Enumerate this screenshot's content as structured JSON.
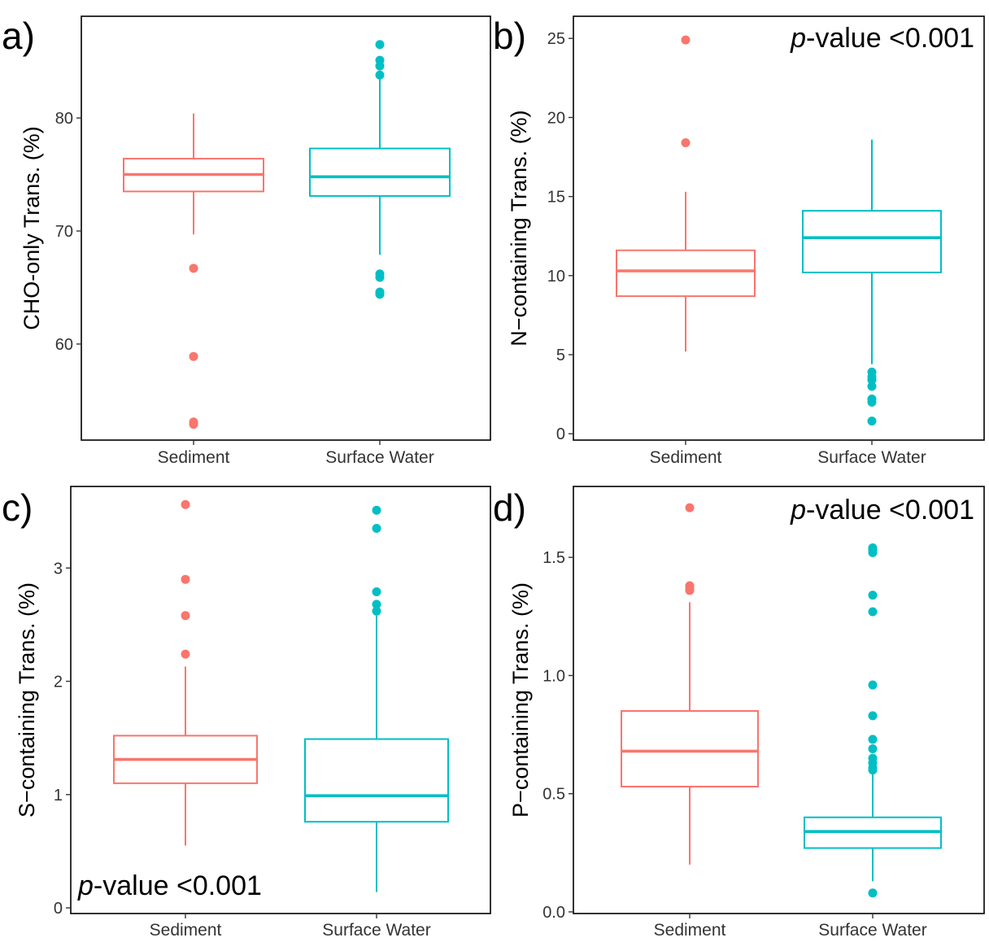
{
  "colors": {
    "sediment": "#F8766D",
    "surface_water": "#00BFC4",
    "axis": "#000000",
    "tick_text": "#333333"
  },
  "chart_data": [
    {
      "panel_label": "a)",
      "type": "box",
      "ylabel": "CHO-only Trans. (%)",
      "categories": [
        "Sediment",
        "Surface Water"
      ],
      "yticks": [
        60,
        70,
        80
      ],
      "ylim": [
        51.5,
        89.0
      ],
      "annotation": "",
      "annotation_position": "none",
      "boxes": [
        {
          "group": "Sediment",
          "whisker_low": 69.7,
          "q1": 73.5,
          "median": 75.0,
          "q3": 76.4,
          "whisker_high": 80.4,
          "outliers": [
            66.7,
            58.9,
            53.1,
            52.9
          ]
        },
        {
          "group": "Surface Water",
          "whisker_low": 67.9,
          "q1": 73.1,
          "median": 74.8,
          "q3": 77.3,
          "whisker_high": 83.5,
          "outliers": [
            86.5,
            85.1,
            84.6,
            83.8,
            66.2,
            65.9,
            64.6,
            64.4
          ]
        }
      ]
    },
    {
      "panel_label": "b)",
      "type": "box",
      "ylabel": "N−containing Trans. (%)",
      "categories": [
        "Sediment",
        "Surface Water"
      ],
      "yticks": [
        0,
        5,
        10,
        15,
        20,
        25
      ],
      "ylim": [
        -0.4,
        26.4
      ],
      "annotation_italic": "p",
      "annotation": "-value <0.001",
      "annotation_position": "top-right",
      "boxes": [
        {
          "group": "Sediment",
          "whisker_low": 5.2,
          "q1": 8.7,
          "median": 10.3,
          "q3": 11.6,
          "whisker_high": 15.3,
          "outliers": [
            24.9,
            18.4
          ]
        },
        {
          "group": "Surface Water",
          "whisker_low": 4.4,
          "q1": 10.2,
          "median": 12.4,
          "q3": 14.1,
          "whisker_high": 18.6,
          "outliers": [
            3.9,
            3.6,
            3.4,
            3.0,
            2.2,
            2.0,
            0.8
          ]
        }
      ]
    },
    {
      "panel_label": "c)",
      "type": "box",
      "ylabel": "S−containing  Trans. (%)",
      "categories": [
        "Sediment",
        "Surface Water"
      ],
      "yticks": [
        0,
        1,
        2,
        3
      ],
      "ylim": [
        -0.05,
        3.72
      ],
      "annotation_italic": "p",
      "annotation": "-value <0.001",
      "annotation_position": "bottom-left",
      "boxes": [
        {
          "group": "Sediment",
          "whisker_low": 0.55,
          "q1": 1.1,
          "median": 1.31,
          "q3": 1.52,
          "whisker_high": 2.13,
          "outliers": [
            3.56,
            2.9,
            2.58,
            2.24
          ]
        },
        {
          "group": "Surface Water",
          "whisker_low": 0.14,
          "q1": 0.76,
          "median": 0.99,
          "q3": 1.49,
          "whisker_high": 2.58,
          "outliers": [
            3.51,
            3.35,
            2.79,
            2.68,
            2.62
          ]
        }
      ]
    },
    {
      "panel_label": "d)",
      "type": "box",
      "ylabel": "P−containing Trans. (%)",
      "categories": [
        "Sediment",
        "Surface Water"
      ],
      "yticks": [
        0.0,
        0.5,
        1.0,
        1.5
      ],
      "ylim": [
        -0.007,
        1.8
      ],
      "annotation_italic": "p",
      "annotation": "-value <0.001",
      "annotation_position": "top-right",
      "boxes": [
        {
          "group": "Sediment",
          "whisker_low": 0.2,
          "q1": 0.53,
          "median": 0.68,
          "q3": 0.85,
          "whisker_high": 1.31,
          "outliers": [
            1.71,
            1.38,
            1.37,
            1.36
          ]
        },
        {
          "group": "Surface Water",
          "whisker_low": 0.13,
          "q1": 0.27,
          "median": 0.34,
          "q3": 0.4,
          "whisker_high": 0.59,
          "outliers": [
            1.54,
            1.53,
            1.52,
            1.34,
            1.27,
            0.96,
            0.83,
            0.73,
            0.69,
            0.65,
            0.63,
            0.61,
            0.6,
            0.08
          ]
        }
      ]
    }
  ]
}
